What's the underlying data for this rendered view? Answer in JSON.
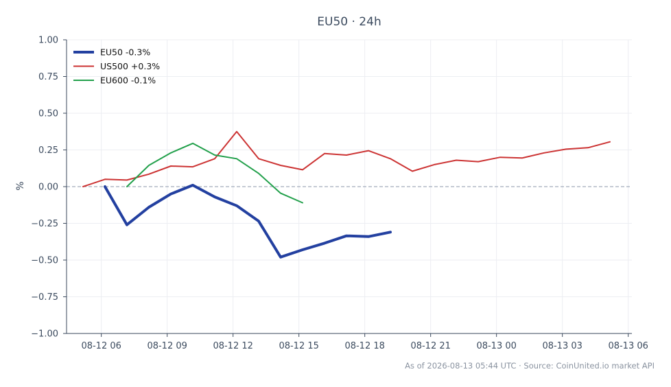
{
  "chart_data": {
    "type": "line",
    "title": "EU50 · 24h",
    "ylabel": "%",
    "xlabel": "",
    "ylim": [
      -1.0,
      1.0
    ],
    "xlim": [
      "2026-08-12 04:25",
      "2026-08-13 06:10"
    ],
    "yticks": [
      1.0,
      0.75,
      0.5,
      0.25,
      0.0,
      -0.25,
      -0.5,
      -0.75,
      -1.0
    ],
    "ytick_labels": [
      "1.00",
      "0.75",
      "0.50",
      "0.25",
      "0.00",
      "−0.25",
      "−0.50",
      "−0.75",
      "−1.00"
    ],
    "xticks": [
      "2026-08-12 06:00",
      "2026-08-12 09:00",
      "2026-08-12 12:00",
      "2026-08-12 15:00",
      "2026-08-12 18:00",
      "2026-08-12 21:00",
      "2026-08-13 00:00",
      "2026-08-13 03:00",
      "2026-08-13 06:00"
    ],
    "xtick_labels": [
      "08-12 06",
      "08-12 09",
      "08-12 12",
      "08-12 15",
      "08-12 18",
      "08-12 21",
      "08-13 00",
      "08-13 03",
      "08-13 06"
    ],
    "zero_line": true,
    "grid": true,
    "legend": "top-left",
    "series": [
      {
        "name": "EU50 -0.3%",
        "color": "#2340a0",
        "width": 4,
        "x": [
          "2026-08-12 06:10",
          "2026-08-12 07:10",
          "2026-08-12 08:10",
          "2026-08-12 09:10",
          "2026-08-12 10:10",
          "2026-08-12 11:10",
          "2026-08-12 12:10",
          "2026-08-12 13:10",
          "2026-08-12 14:10",
          "2026-08-12 15:10",
          "2026-08-12 16:10",
          "2026-08-12 17:10",
          "2026-08-12 18:10",
          "2026-08-12 19:10"
        ],
        "y": [
          0.0,
          -0.26,
          -0.14,
          -0.05,
          0.01,
          -0.07,
          -0.13,
          -0.235,
          -0.48,
          -0.43,
          -0.385,
          -0.335,
          -0.34,
          -0.31
        ]
      },
      {
        "name": "US500 +0.3%",
        "color": "#cc3333",
        "width": 2,
        "x": [
          "2026-08-12 05:10",
          "2026-08-12 06:10",
          "2026-08-12 07:10",
          "2026-08-12 08:10",
          "2026-08-12 09:10",
          "2026-08-12 10:10",
          "2026-08-12 11:10",
          "2026-08-12 12:10",
          "2026-08-12 13:10",
          "2026-08-12 14:10",
          "2026-08-12 15:10",
          "2026-08-12 16:10",
          "2026-08-12 17:10",
          "2026-08-12 18:10",
          "2026-08-12 19:10",
          "2026-08-12 20:10",
          "2026-08-12 21:10",
          "2026-08-12 22:10",
          "2026-08-12 23:10",
          "2026-08-13 00:10",
          "2026-08-13 01:10",
          "2026-08-13 02:10",
          "2026-08-13 03:10",
          "2026-08-13 04:10",
          "2026-08-13 05:10"
        ],
        "y": [
          0.0,
          0.05,
          0.045,
          0.085,
          0.14,
          0.135,
          0.19,
          0.375,
          0.19,
          0.145,
          0.115,
          0.225,
          0.215,
          0.245,
          0.19,
          0.105,
          0.15,
          0.18,
          0.17,
          0.2,
          0.195,
          0.23,
          0.255,
          0.265,
          0.305
        ]
      },
      {
        "name": "EU600 -0.1%",
        "color": "#22a04b",
        "width": 2,
        "x": [
          "2026-08-12 07:10",
          "2026-08-12 08:10",
          "2026-08-12 09:10",
          "2026-08-12 10:10",
          "2026-08-12 11:10",
          "2026-08-12 12:10",
          "2026-08-12 13:10",
          "2026-08-12 14:10",
          "2026-08-12 15:10"
        ],
        "y": [
          0.0,
          0.145,
          0.23,
          0.295,
          0.215,
          0.19,
          0.09,
          -0.045,
          -0.11
        ]
      }
    ],
    "footer": "As of 2026-08-13 05:44 UTC · Source: CoinUnited.io market API"
  }
}
